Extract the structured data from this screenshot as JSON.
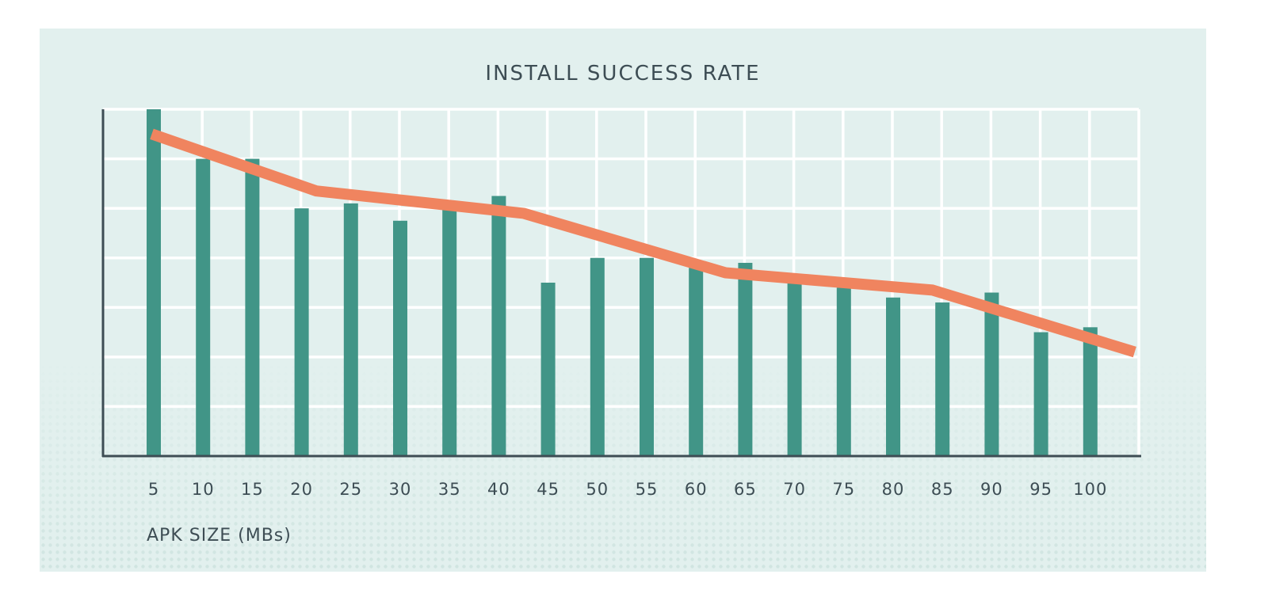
{
  "chart_data": {
    "type": "bar",
    "title": "INSTALL SUCCESS RATE",
    "xlabel": "APK SIZE (MBs)",
    "ylabel": "",
    "categories": [
      "5",
      "10",
      "15",
      "20",
      "25",
      "30",
      "35",
      "40",
      "45",
      "50",
      "55",
      "60",
      "65",
      "70",
      "75",
      "80",
      "85",
      "90",
      "95",
      "100"
    ],
    "ylim": [
      0,
      7
    ],
    "grid": true,
    "series": [
      {
        "type": "bar",
        "values": [
          7.0,
          6.0,
          6.0,
          5.0,
          5.1,
          4.75,
          5.0,
          5.25,
          3.5,
          4.0,
          4.0,
          3.8,
          3.9,
          3.6,
          3.4,
          3.2,
          3.1,
          3.3,
          2.5,
          2.6
        ]
      },
      {
        "type": "line",
        "x": [
          4.8,
          21.5,
          42.5,
          63,
          84,
          104.5
        ],
        "values": [
          6.5,
          5.35,
          4.9,
          3.7,
          3.35,
          2.1
        ]
      }
    ],
    "colors": {
      "bar": "#419587",
      "line": "#f0845f",
      "grid": "#ffffff",
      "axis": "#3d4d54",
      "background": "#e2f0ee"
    }
  }
}
